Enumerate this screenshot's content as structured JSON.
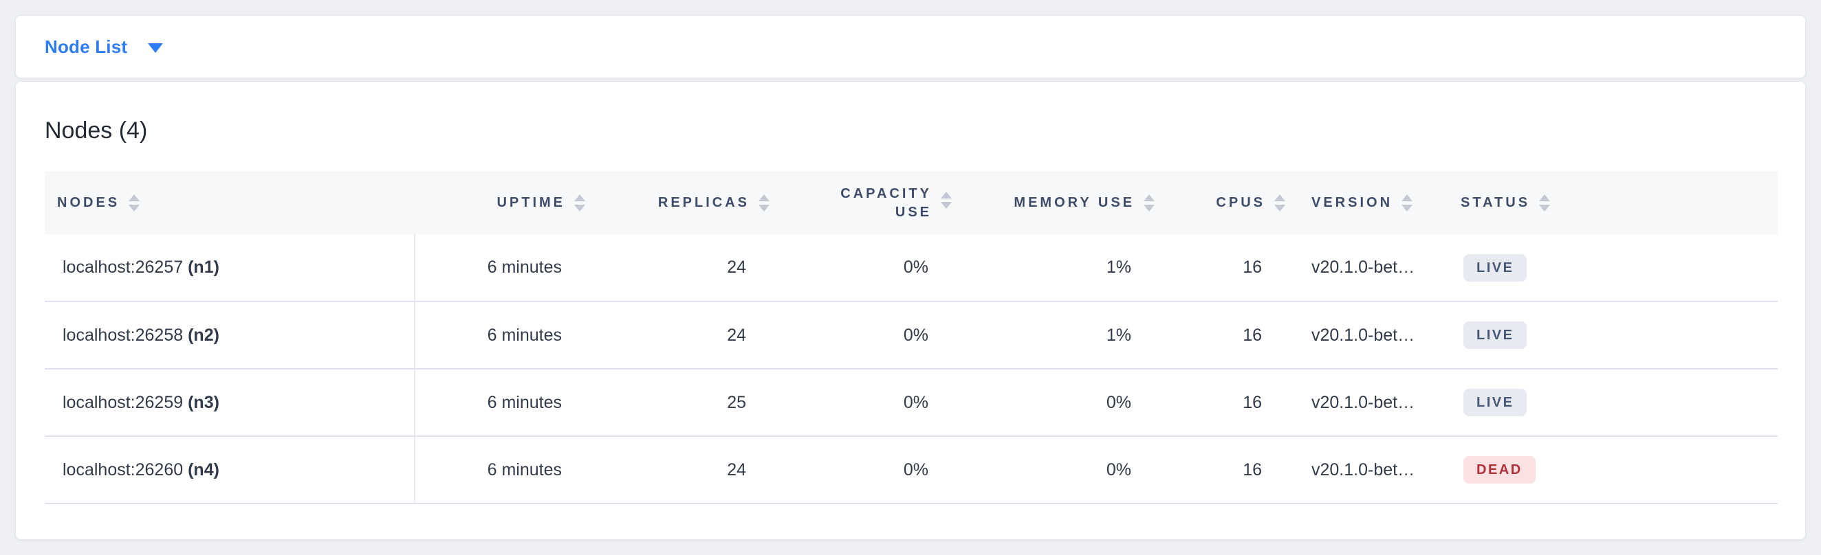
{
  "colors": {
    "accent": "#2f7cf5",
    "header_text": "#3f4c68",
    "body_text": "#333b49",
    "header_bg": "#f7f8fa",
    "row_border": "#dfe2eb"
  },
  "icons": {
    "dropdown_caret": "chevron-down-icon",
    "column_sort": "sort-arrows-icon"
  },
  "topbar": {
    "dropdown_label": "Node List"
  },
  "main": {
    "title": "Nodes (4)"
  },
  "table": {
    "columns": [
      {
        "key": "nodes",
        "label": "NODES",
        "align": "left",
        "wrap": false
      },
      {
        "key": "uptime",
        "label": "UPTIME",
        "align": "right",
        "wrap": false
      },
      {
        "key": "replicas",
        "label": "REPLICAS",
        "align": "right",
        "wrap": false
      },
      {
        "key": "capacity_use",
        "label": "CAPACITY USE",
        "align": "right",
        "wrap": true
      },
      {
        "key": "memory_use",
        "label": "MEMORY USE",
        "align": "right",
        "wrap": false
      },
      {
        "key": "cpus",
        "label": "CPUS",
        "align": "right",
        "wrap": false
      },
      {
        "key": "version",
        "label": "VERSION",
        "align": "left",
        "wrap": false
      },
      {
        "key": "status",
        "label": "STATUS",
        "align": "left",
        "wrap": false
      }
    ],
    "rows": [
      {
        "address": "localhost:26257",
        "node_id": "(n1)",
        "uptime": "6 minutes",
        "replicas": "24",
        "capacity_use": "0%",
        "memory_use": "1%",
        "cpus": "16",
        "version": "v20.1.0-bet…",
        "status": "LIVE"
      },
      {
        "address": "localhost:26258",
        "node_id": "(n2)",
        "uptime": "6 minutes",
        "replicas": "24",
        "capacity_use": "0%",
        "memory_use": "1%",
        "cpus": "16",
        "version": "v20.1.0-bet…",
        "status": "LIVE"
      },
      {
        "address": "localhost:26259",
        "node_id": "(n3)",
        "uptime": "6 minutes",
        "replicas": "25",
        "capacity_use": "0%",
        "memory_use": "0%",
        "cpus": "16",
        "version": "v20.1.0-bet…",
        "status": "LIVE"
      },
      {
        "address": "localhost:26260",
        "node_id": "(n4)",
        "uptime": "6 minutes",
        "replicas": "24",
        "capacity_use": "0%",
        "memory_use": "0%",
        "cpus": "16",
        "version": "v20.1.0-bet…",
        "status": "DEAD"
      }
    ],
    "status_styles": {
      "LIVE": {
        "bg": "#e7eaf1",
        "color": "#475872"
      },
      "DEAD": {
        "bg": "#fbe1e2",
        "color": "#ad2f39"
      }
    }
  }
}
